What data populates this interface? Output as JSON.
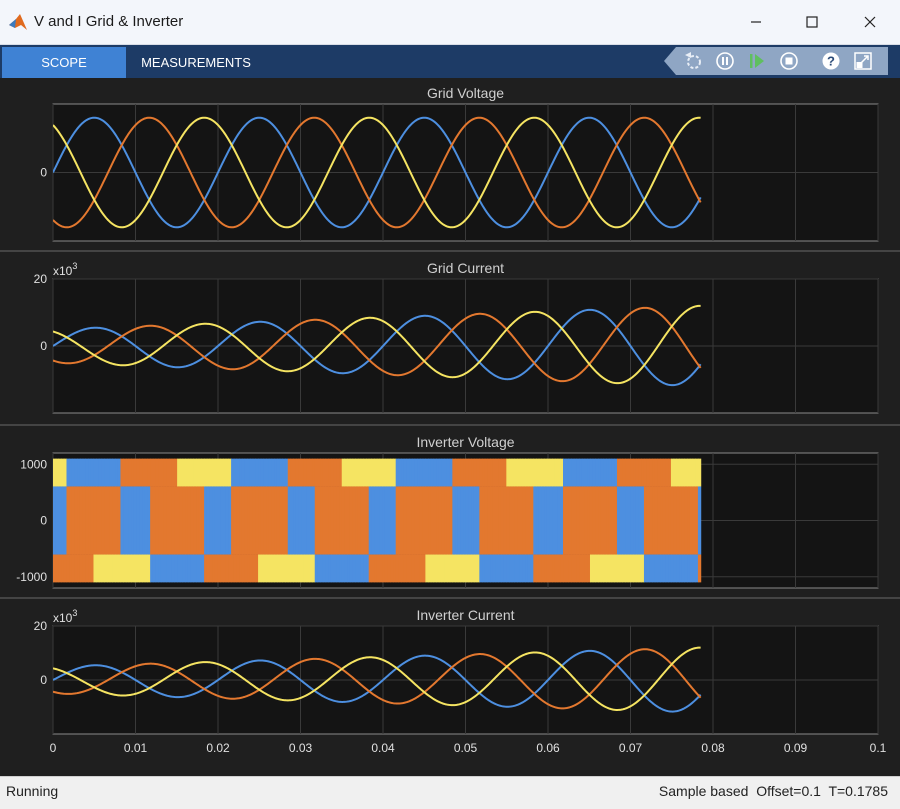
{
  "window": {
    "title": "V and I Grid & Inverter"
  },
  "toolstrip": {
    "tabs": [
      {
        "label": "SCOPE"
      },
      {
        "label": "MEASUREMENTS"
      }
    ]
  },
  "status": {
    "text": "Running",
    "right": "Sample based  Offset=0.1  T=0.1785"
  },
  "colors": {
    "phase_a": "#4d8fe0",
    "phase_b": "#e3782f",
    "phase_c": "#f5e462",
    "plot_bg": "#141414",
    "grid": "#3a3a3a"
  },
  "chart_data": [
    {
      "type": "line",
      "title": "Grid Voltage",
      "multiplier": "",
      "xlim": [
        0,
        0.1
      ],
      "ylim": [
        -1,
        1
      ],
      "yticks": [
        "0"
      ],
      "signal": {
        "kind": "sine",
        "freq_hz": 50,
        "amplitude": 0.8,
        "t_end": 0.0785
      },
      "series": [
        {
          "phase_deg": 0
        },
        {
          "phase_deg": -120
        },
        {
          "phase_deg": 120
        }
      ]
    },
    {
      "type": "line",
      "title": "Grid Current",
      "multiplier": "x10",
      "multiplier_exp": "3",
      "xlim": [
        0,
        0.1
      ],
      "ylim": [
        -20,
        20
      ],
      "yticks": [
        "20",
        "0"
      ],
      "signal": {
        "kind": "sine",
        "freq_hz": 50,
        "amplitude_start": 5,
        "amplitude_end": 12,
        "t_end": 0.0785
      },
      "series": [
        {
          "phase_deg": 0
        },
        {
          "phase_deg": -120
        },
        {
          "phase_deg": 120
        }
      ]
    },
    {
      "type": "area",
      "title": "Inverter Voltage",
      "multiplier": "",
      "xlim": [
        0,
        0.1
      ],
      "ylim": [
        -1200,
        1200
      ],
      "yticks": [
        "1000",
        "0",
        "-1000"
      ],
      "signal": {
        "kind": "pwm",
        "freq_hz": 50,
        "amplitude": 1100,
        "t_end": 0.0785
      }
    },
    {
      "type": "line",
      "title": "Inverter Current",
      "multiplier": "x10",
      "multiplier_exp": "3",
      "xlim": [
        0,
        0.1
      ],
      "ylim": [
        -20,
        20
      ],
      "yticks": [
        "20",
        "0"
      ],
      "xticks": [
        "0",
        "0.01",
        "0.02",
        "0.03",
        "0.04",
        "0.05",
        "0.06",
        "0.07",
        "0.08",
        "0.09",
        "0.1"
      ],
      "signal": {
        "kind": "sine",
        "freq_hz": 50,
        "amplitude_start": 5,
        "amplitude_end": 12,
        "t_end": 0.0785
      },
      "series": [
        {
          "phase_deg": 0
        },
        {
          "phase_deg": -120
        },
        {
          "phase_deg": 120
        }
      ]
    }
  ]
}
